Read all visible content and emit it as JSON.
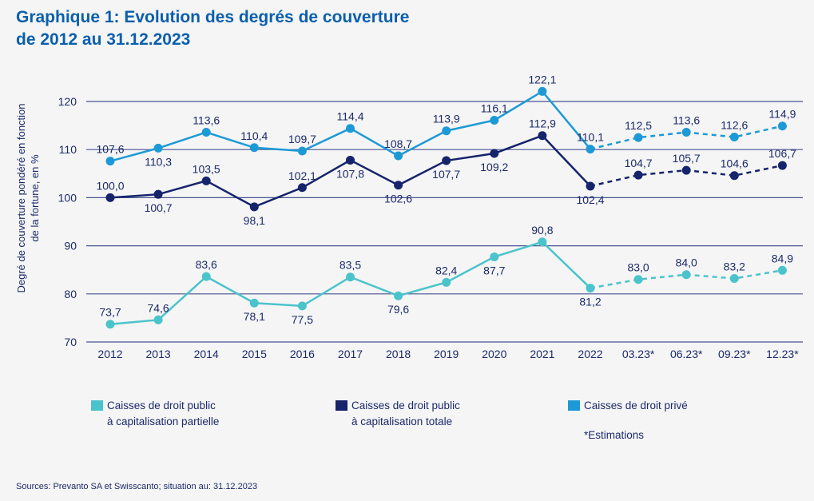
{
  "chart_data": {
    "type": "line",
    "title": "Graphique 1: Evolution des degrés de couverture de 2012 au 31.12.2023",
    "title_lines": [
      "Graphique 1: Evolution des degrés de couverture",
      "de 2012 au 31.12.2023"
    ],
    "xlabel": "",
    "ylabel": "Degré de couverture pondéré en fonction de la fortune, en %",
    "ylabel_lines": [
      "Degré de couverture pondéré en fonction",
      "de la fortune, en %"
    ],
    "categories": [
      "2012",
      "2013",
      "2014",
      "2015",
      "2016",
      "2017",
      "2018",
      "2019",
      "2020",
      "2021",
      "2022",
      "03.23*",
      "06.23*",
      "09.23*",
      "12.23*"
    ],
    "estimate_start_index": 10,
    "ylim": [
      70,
      120
    ],
    "yticks": [
      70,
      80,
      90,
      100,
      110,
      120
    ],
    "grid": true,
    "legend_position": "bottom",
    "series": [
      {
        "name": "Caisses de droit public à capitalisation partielle",
        "name_lines": [
          "Caisses de droit public",
          "à capitalisation partielle"
        ],
        "color": "#4bc3cb",
        "values": [
          73.7,
          74.6,
          83.6,
          78.1,
          77.5,
          83.5,
          79.6,
          82.4,
          87.7,
          90.8,
          81.2,
          83.0,
          84.0,
          83.2,
          84.9
        ],
        "labels": [
          "73,7",
          "74,6",
          "83,6",
          "78,1",
          "77,5",
          "83,5",
          "79,6",
          "82,4",
          "87,7",
          "90,8",
          "81,2",
          "83,0",
          "84,0",
          "83,2",
          "84,9"
        ],
        "label_pos": [
          "above",
          "above",
          "above",
          "below",
          "below",
          "above",
          "below",
          "above",
          "below",
          "above",
          "below",
          "above",
          "above",
          "above",
          "above"
        ]
      },
      {
        "name": "Caisses de droit public à capitalisation totale",
        "name_lines": [
          "Caisses de droit public",
          "à capitalisation totale"
        ],
        "color": "#15246b",
        "values": [
          100.0,
          100.7,
          103.5,
          98.1,
          102.1,
          107.8,
          102.6,
          107.7,
          109.2,
          112.9,
          102.4,
          104.7,
          105.7,
          104.6,
          106.7
        ],
        "labels": [
          "100,0",
          "100,7",
          "103,5",
          "98,1",
          "102,1",
          "107,8",
          "102,6",
          "107,7",
          "109,2",
          "112,9",
          "102,4",
          "104,7",
          "105,7",
          "104,6",
          "106,7"
        ],
        "label_pos": [
          "above",
          "below",
          "above",
          "below",
          "above",
          "below",
          "below",
          "below",
          "below",
          "above",
          "below",
          "above",
          "above",
          "above",
          "above"
        ]
      },
      {
        "name": "Caisses de droit privé",
        "name_lines": [
          "Caisses de droit privé"
        ],
        "color": "#1d9ad6",
        "values": [
          107.6,
          110.3,
          113.6,
          110.4,
          109.7,
          114.4,
          108.7,
          113.9,
          116.1,
          122.1,
          110.1,
          112.5,
          113.6,
          112.6,
          114.9
        ],
        "labels": [
          "107,6",
          "110,3",
          "113,6",
          "110,4",
          "109,7",
          "114,4",
          "108,7",
          "113,9",
          "116,1",
          "122,1",
          "110,1",
          "112,5",
          "113,6",
          "112,6",
          "114,9"
        ],
        "label_pos": [
          "above",
          "below",
          "above",
          "above",
          "above",
          "above",
          "above",
          "above",
          "above",
          "above",
          "above",
          "above",
          "above",
          "above",
          "above"
        ]
      }
    ],
    "note": "*Estimations",
    "source": "Sources: Prevanto SA et Swisscanto; situation au: 31.12.2023"
  }
}
